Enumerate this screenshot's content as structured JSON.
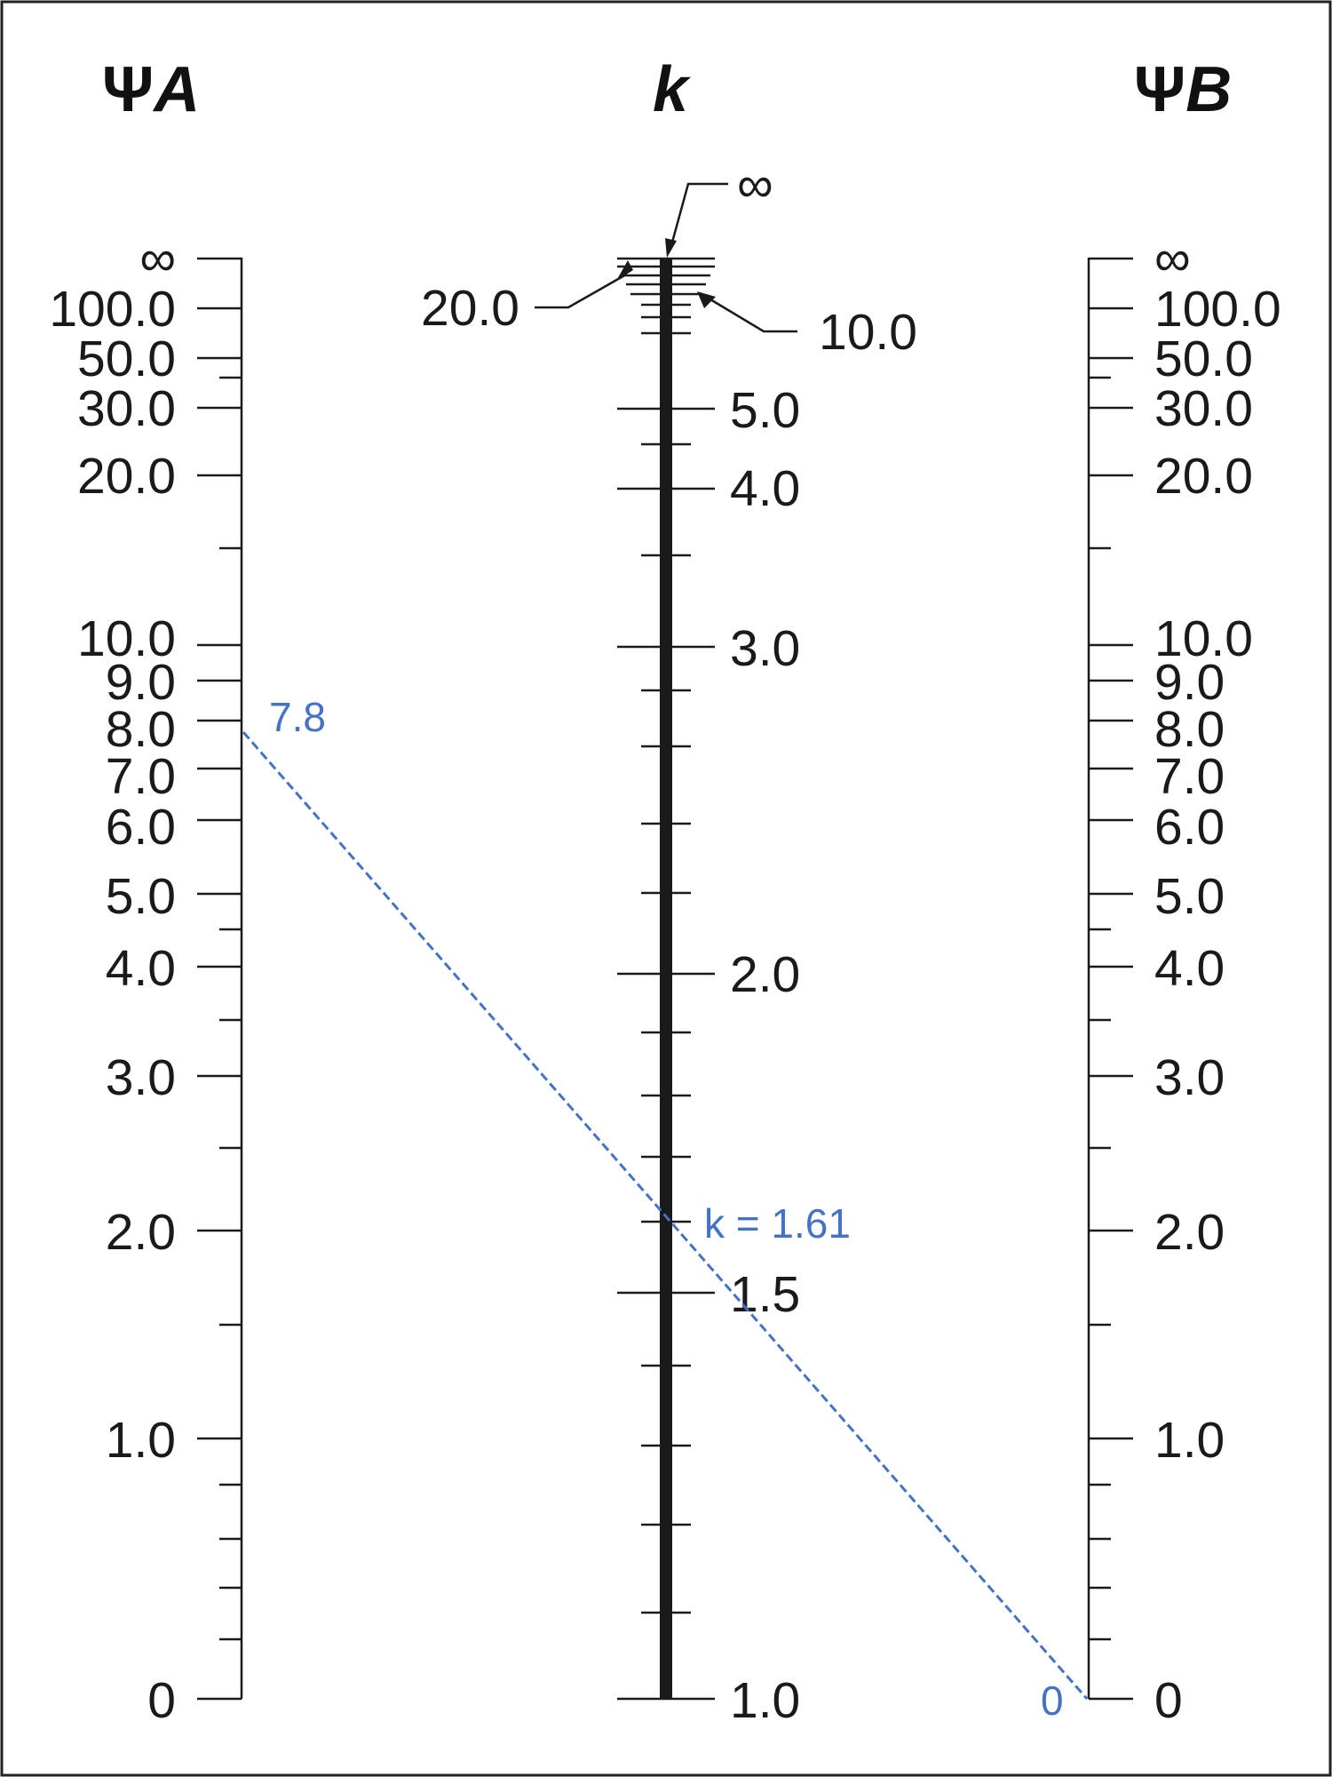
{
  "titles": {
    "psi": "Ψ",
    "left_letter": "A",
    "center": "k",
    "right_letter": "B"
  },
  "psi_scale_labels": [
    "∞",
    "100.0",
    "50.0",
    "30.0",
    "20.0",
    "10.0",
    "9.0",
    "8.0",
    "7.0",
    "6.0",
    "5.0",
    "4.0",
    "3.0",
    "2.0",
    "1.0",
    "0"
  ],
  "k_scale_labels": {
    "infinity": "∞",
    "twenty": "20.0",
    "ten": "10.0",
    "five": "5.0",
    "four": "4.0",
    "three": "3.0",
    "two": "2.0",
    "one_five": "1.5",
    "one": "1.0"
  },
  "solution": {
    "psi_a_value_label": "7.8",
    "psi_b_value_label": "0",
    "k_result_label": "k = 1.61",
    "line_color": "#4472c4"
  }
}
